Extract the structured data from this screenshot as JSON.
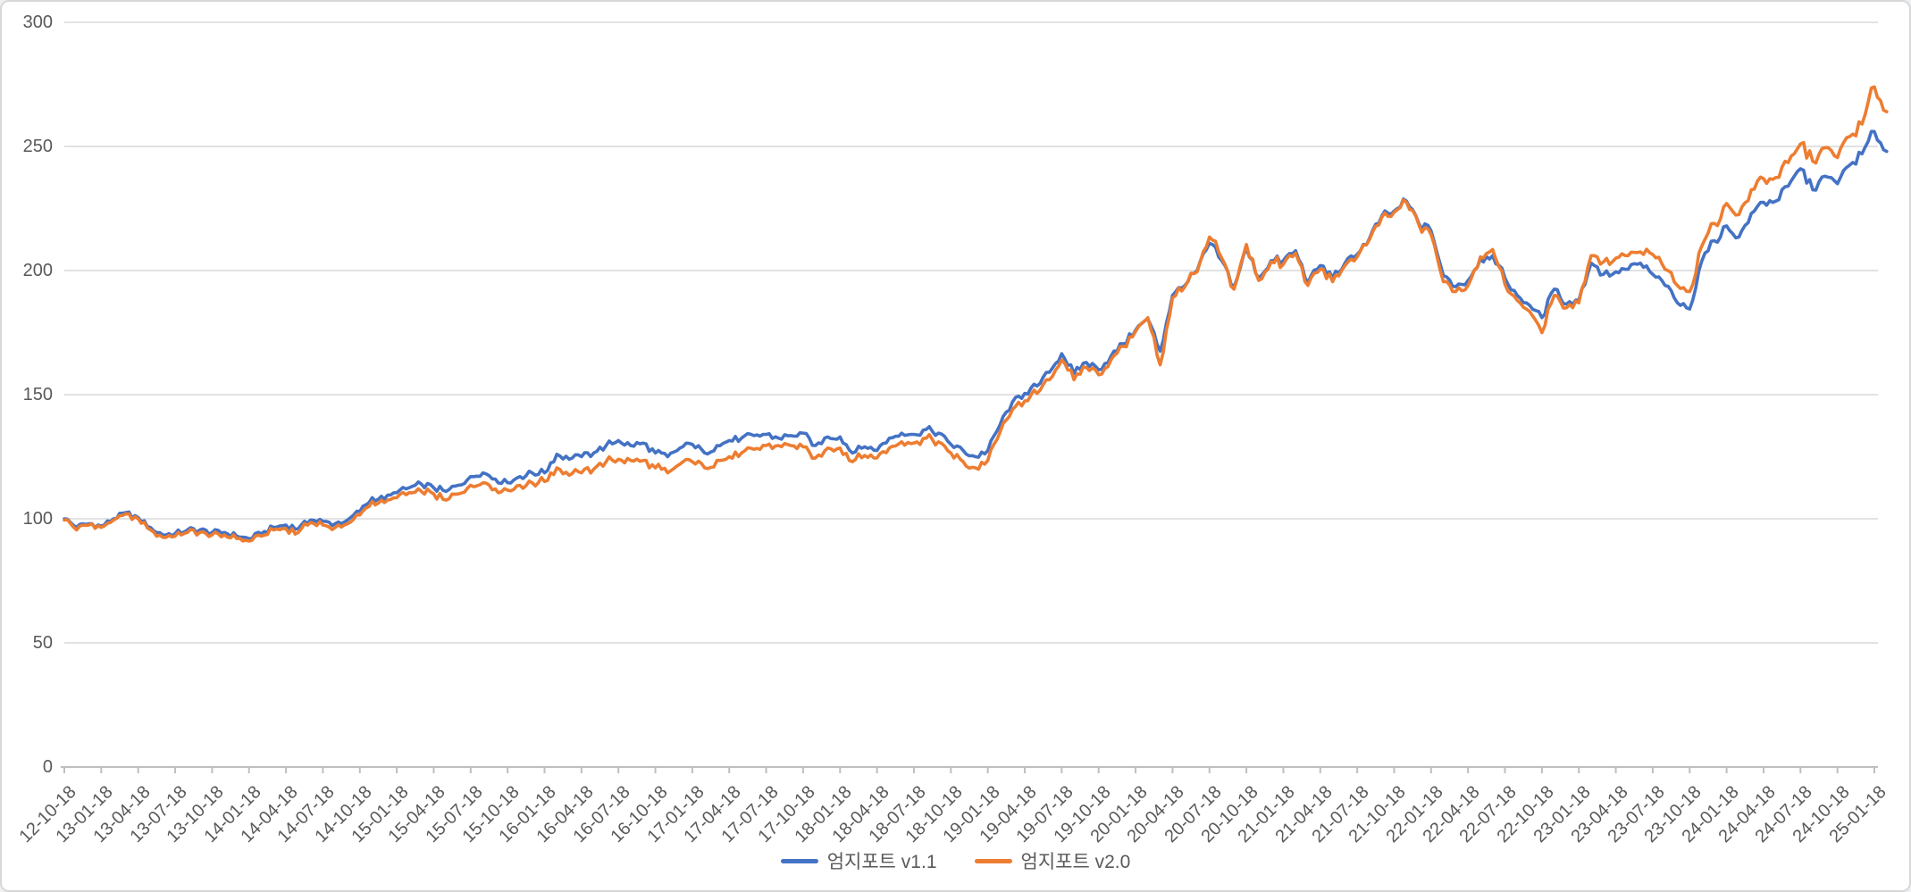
{
  "chart_data": {
    "type": "line",
    "title": "",
    "xlabel": "",
    "ylabel": "",
    "ylim": [
      0,
      300
    ],
    "yticks": [
      0,
      50,
      100,
      150,
      200,
      250,
      300
    ],
    "grid": "horizontal",
    "legend_position": "bottom-center",
    "x_label_rotation": -45,
    "x_tick_labels": [
      "12-10-18",
      "13-01-18",
      "13-04-18",
      "13-07-18",
      "13-10-18",
      "14-01-18",
      "14-04-18",
      "14-07-18",
      "14-10-18",
      "15-01-18",
      "15-04-18",
      "15-07-18",
      "15-10-18",
      "16-01-18",
      "16-04-18",
      "16-07-18",
      "16-10-18",
      "17-01-18",
      "17-04-18",
      "17-07-18",
      "17-10-18",
      "18-01-18",
      "18-04-18",
      "18-07-18",
      "18-10-18",
      "19-01-18",
      "19-04-18",
      "19-07-18",
      "19-10-18",
      "20-01-18",
      "20-04-18",
      "20-07-18",
      "20-10-18",
      "21-01-18",
      "21-04-18",
      "21-07-18",
      "21-10-18",
      "22-01-18",
      "22-04-18",
      "22-07-18",
      "22-10-18",
      "23-01-18",
      "23-04-18",
      "23-07-18",
      "23-10-18",
      "24-01-18",
      "24-04-18",
      "24-07-18",
      "24-10-18",
      "25-01-18"
    ],
    "x_monthly": [
      "2012-10",
      "2012-11",
      "2012-12",
      "2013-01",
      "2013-02",
      "2013-03",
      "2013-04",
      "2013-05",
      "2013-06",
      "2013-07",
      "2013-08",
      "2013-09",
      "2013-10",
      "2013-11",
      "2013-12",
      "2014-01",
      "2014-02",
      "2014-03",
      "2014-04",
      "2014-05",
      "2014-06",
      "2014-07",
      "2014-08",
      "2014-09",
      "2014-10",
      "2014-11",
      "2014-12",
      "2015-01",
      "2015-02",
      "2015-03",
      "2015-04",
      "2015-05",
      "2015-06",
      "2015-07",
      "2015-08",
      "2015-09",
      "2015-10",
      "2015-11",
      "2015-12",
      "2016-01",
      "2016-02",
      "2016-03",
      "2016-04",
      "2016-05",
      "2016-06",
      "2016-07",
      "2016-08",
      "2016-09",
      "2016-10",
      "2016-11",
      "2016-12",
      "2017-01",
      "2017-02",
      "2017-03",
      "2017-04",
      "2017-05",
      "2017-06",
      "2017-07",
      "2017-08",
      "2017-09",
      "2017-10",
      "2017-11",
      "2017-12",
      "2018-01",
      "2018-02",
      "2018-03",
      "2018-04",
      "2018-05",
      "2018-06",
      "2018-07",
      "2018-08",
      "2018-09",
      "2018-10",
      "2018-11",
      "2018-12",
      "2019-01",
      "2019-02",
      "2019-03",
      "2019-04",
      "2019-05",
      "2019-06",
      "2019-07",
      "2019-08",
      "2019-09",
      "2019-10",
      "2019-11",
      "2019-12",
      "2020-01",
      "2020-02",
      "2020-03",
      "2020-04",
      "2020-05",
      "2020-06",
      "2020-07",
      "2020-08",
      "2020-09",
      "2020-10",
      "2020-11",
      "2020-12",
      "2021-01",
      "2021-02",
      "2021-03",
      "2021-04",
      "2021-05",
      "2021-06",
      "2021-07",
      "2021-08",
      "2021-09",
      "2021-10",
      "2021-11",
      "2021-12",
      "2022-01",
      "2022-02",
      "2022-03",
      "2022-04",
      "2022-05",
      "2022-06",
      "2022-07",
      "2022-08",
      "2022-09",
      "2022-10",
      "2022-11",
      "2022-12",
      "2023-01",
      "2023-02",
      "2023-03",
      "2023-04",
      "2023-05",
      "2023-06",
      "2023-07",
      "2023-08",
      "2023-09",
      "2023-10",
      "2023-11",
      "2023-12",
      "2024-01",
      "2024-02",
      "2024-03",
      "2024-04",
      "2024-05",
      "2024-06",
      "2024-07",
      "2024-08",
      "2024-09",
      "2024-10",
      "2024-11",
      "2024-12",
      "2025-01",
      "2025-02"
    ],
    "series": [
      {
        "name": "엄지포트 v1.1",
        "color": "#4472C4",
        "values": [
          100,
          96.5,
          98,
          97,
          100,
          102.5,
          100.5,
          96.5,
          93.5,
          94,
          95.5,
          95.5,
          94.5,
          94.5,
          93,
          92,
          94,
          96.5,
          97.5,
          96,
          99.5,
          99,
          98,
          99.5,
          103,
          108.5,
          108,
          110.5,
          112.5,
          114,
          112.5,
          111,
          113.5,
          117,
          118.5,
          116,
          114.5,
          117,
          118.5,
          118.5,
          126,
          124,
          125,
          126.5,
          129.5,
          131.5,
          129.5,
          130.5,
          126.5,
          125,
          128.5,
          130,
          126.5,
          129.5,
          131.5,
          132.5,
          133.5,
          134,
          132.5,
          133.5,
          134.5,
          129.5,
          133,
          133,
          126.5,
          129,
          127.5,
          132.5,
          134.5,
          134,
          136,
          134.5,
          130,
          127.5,
          125,
          127.5,
          138,
          147,
          150.5,
          153.5,
          159,
          166.5,
          158.5,
          163,
          160,
          165.5,
          170.5,
          176,
          180.5,
          167.5,
          190,
          194,
          200,
          211,
          204,
          193.5,
          209,
          197,
          204,
          204,
          208,
          195,
          202,
          197,
          203,
          206.5,
          213,
          222,
          224,
          228,
          219,
          216,
          198,
          193.5,
          196,
          204.5,
          206,
          197,
          190,
          186,
          181,
          192.5,
          186.5,
          188,
          203,
          198.5,
          199.5,
          200.5,
          203,
          198.5,
          194,
          187,
          184.5,
          204,
          212,
          218,
          213.5,
          223,
          227.5,
          228,
          234,
          241,
          232.5,
          238,
          235,
          242.5,
          247,
          256,
          248
        ]
      },
      {
        "name": "엄지포트 v2.0",
        "color": "#ED7D31",
        "values": [
          99.5,
          95.5,
          97.5,
          96.5,
          99.5,
          102,
          100,
          95.5,
          92.5,
          93,
          94.5,
          94.5,
          93.5,
          93.5,
          92,
          91,
          93,
          95.5,
          96,
          94.5,
          98.5,
          97.5,
          96.5,
          98,
          101.5,
          107,
          106.5,
          108.5,
          110.5,
          111,
          110,
          107.5,
          110,
          113.5,
          114.5,
          112,
          111.5,
          113.5,
          114.5,
          115,
          120.5,
          117.5,
          118.5,
          120,
          123,
          124,
          123.5,
          123.5,
          120.5,
          118.5,
          122,
          123,
          120.5,
          123.5,
          125,
          126.5,
          128,
          129.5,
          129.5,
          129.5,
          129,
          124.5,
          128.5,
          128.5,
          123,
          125.5,
          124.5,
          128.5,
          131,
          130.5,
          132.5,
          131,
          126.5,
          123,
          120.5,
          123.5,
          135,
          144,
          147.5,
          150.5,
          156,
          164,
          156,
          161,
          158,
          164,
          169.5,
          175.5,
          181,
          162,
          189,
          193.5,
          199.5,
          213.5,
          205,
          192.5,
          210.5,
          196,
          203.5,
          202.5,
          207,
          194,
          200.5,
          195.5,
          202,
          205.5,
          212.5,
          221.5,
          223.5,
          227.5,
          218.5,
          214.5,
          195.5,
          191.5,
          194,
          205.5,
          208.5,
          194.5,
          188,
          183.5,
          175,
          190,
          185,
          187,
          206,
          203.5,
          205,
          206,
          207.5,
          206.5,
          200.5,
          194,
          191.5,
          210,
          219,
          227,
          222.5,
          232.5,
          237,
          237.5,
          243.5,
          251,
          244,
          249.5,
          245.5,
          254,
          259,
          274,
          264
        ]
      }
    ],
    "colors": {
      "background": "#FFFFFF",
      "border": "#D8D8D8",
      "gridline": "#D9D9D9",
      "axis": "#BFBFBF",
      "tick_label": "#595959",
      "legend_text": "#595959"
    }
  }
}
